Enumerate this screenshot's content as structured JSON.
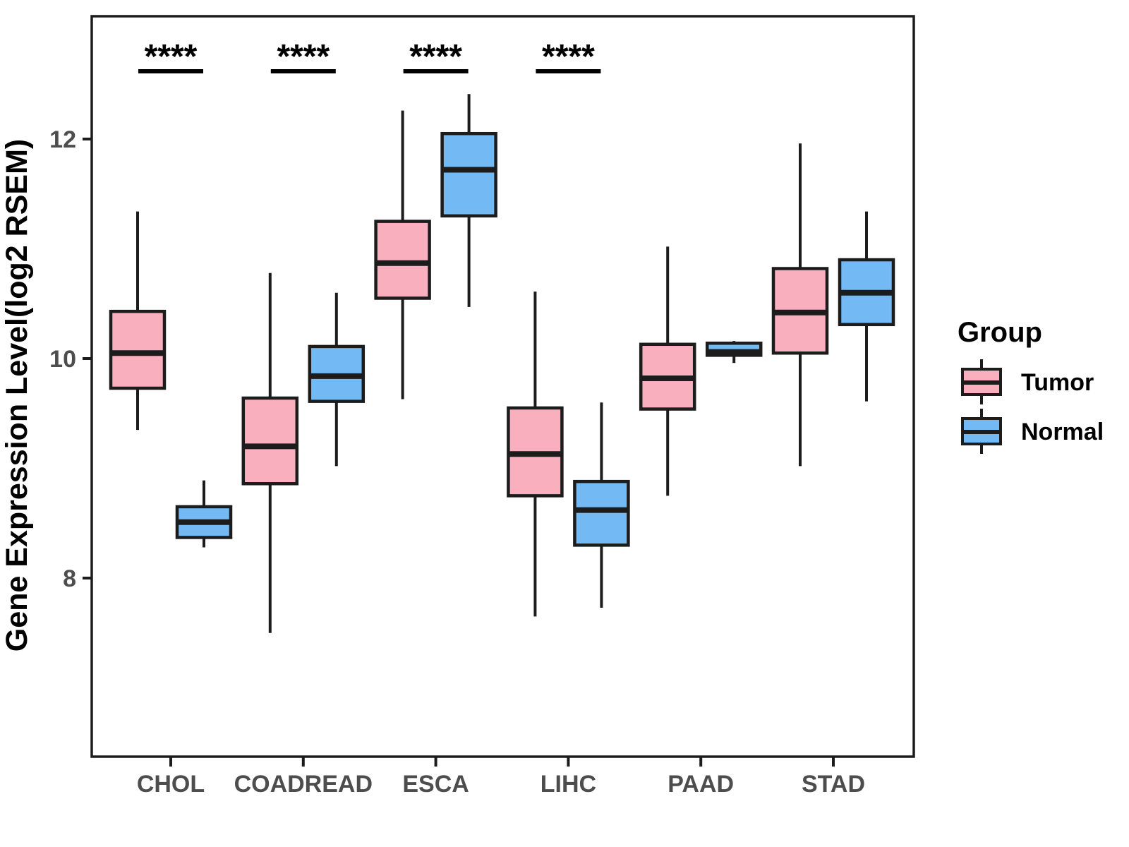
{
  "chart_data": {
    "type": "boxplot",
    "title": "",
    "ylabel": "Gene Expression Level(log2 RSEM)",
    "xlabel": "",
    "categories": [
      "CHOL",
      "COADREAD",
      "ESCA",
      "LIHC",
      "PAAD",
      "STAD"
    ],
    "y_ticks": [
      {
        "value": 8,
        "label": "8"
      },
      {
        "value": 10,
        "label": "10"
      },
      {
        "value": 12,
        "label": "12"
      }
    ],
    "ylim": [
      6.4,
      13.1
    ],
    "grid": false,
    "legend_position": "right",
    "legend": {
      "title": "Group",
      "entries": [
        {
          "label": "Tumor",
          "color": "#FAAFBE"
        },
        {
          "label": "Normal",
          "color": "#73BAF4"
        }
      ]
    },
    "significance": [
      {
        "category": "CHOL",
        "category_index": 0,
        "label": "****"
      },
      {
        "category": "COADREAD",
        "category_index": 1,
        "label": "****"
      },
      {
        "category": "ESCA",
        "category_index": 2,
        "label": "****"
      },
      {
        "category": "LIHC",
        "category_index": 3,
        "label": "****"
      }
    ],
    "series": [
      {
        "name": "Tumor",
        "color": "#FAAFBE",
        "boxes": [
          {
            "low": 9.35,
            "q1": 9.73,
            "median": 10.05,
            "q3": 10.43,
            "high": 11.34
          },
          {
            "low": 7.5,
            "q1": 8.86,
            "median": 9.2,
            "q3": 9.64,
            "high": 10.78
          },
          {
            "low": 9.63,
            "q1": 10.55,
            "median": 10.87,
            "q3": 11.25,
            "high": 12.26
          },
          {
            "low": 7.65,
            "q1": 8.75,
            "median": 9.13,
            "q3": 9.55,
            "high": 10.61
          },
          {
            "low": 8.75,
            "q1": 9.54,
            "median": 9.82,
            "q3": 10.13,
            "high": 11.02
          },
          {
            "low": 9.02,
            "q1": 10.05,
            "median": 10.42,
            "q3": 10.82,
            "high": 11.96
          }
        ]
      },
      {
        "name": "Normal",
        "color": "#73BAF4",
        "boxes": [
          {
            "low": 8.28,
            "q1": 8.37,
            "median": 8.51,
            "q3": 8.65,
            "high": 8.89
          },
          {
            "low": 9.02,
            "q1": 9.61,
            "median": 9.84,
            "q3": 10.11,
            "high": 10.6
          },
          {
            "low": 10.47,
            "q1": 11.3,
            "median": 11.72,
            "q3": 12.05,
            "high": 12.41
          },
          {
            "low": 7.73,
            "q1": 8.3,
            "median": 8.62,
            "q3": 8.88,
            "high": 9.6
          },
          {
            "low": 9.96,
            "q1": 10.03,
            "median": 10.06,
            "q3": 10.14,
            "high": 10.16
          },
          {
            "low": 9.61,
            "q1": 10.31,
            "median": 10.6,
            "q3": 10.9,
            "high": 11.34
          }
        ]
      }
    ],
    "colors": {
      "tumor": "#FAAFBE",
      "normal": "#73BAF4",
      "box_stroke": "#1C1C1C",
      "axis_text": "#4D4D4D",
      "title_text": "#000000",
      "panel_border": "#1C1C1C",
      "background": "#FFFFFF"
    }
  }
}
